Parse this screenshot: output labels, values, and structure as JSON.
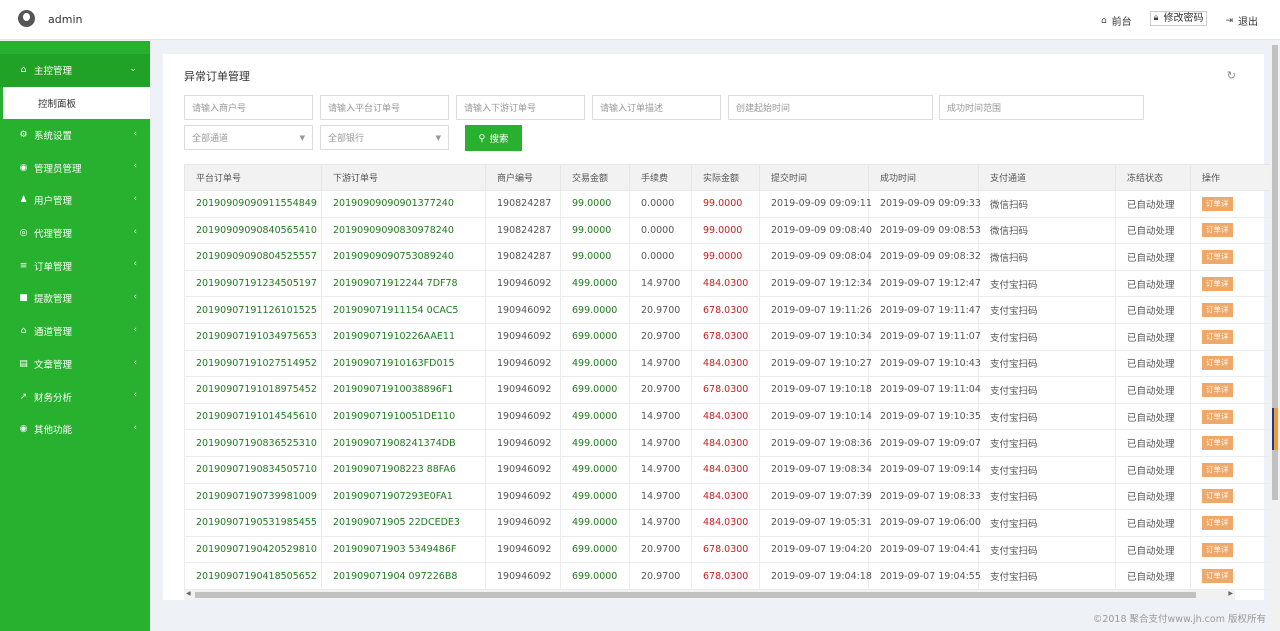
{
  "header": {
    "user_name": "admin",
    "links": [
      {
        "icon": "home-icon",
        "glyph": "⌂",
        "label": "前台"
      },
      {
        "icon": "lock-icon",
        "glyph": "🔒︎",
        "label": "修改密码"
      },
      {
        "icon": "logout-icon",
        "glyph": "⇥",
        "label": "退出"
      }
    ]
  },
  "sidebar": {
    "items": [
      {
        "icon": "home-icon",
        "glyph": "⌂",
        "label": "主控管理",
        "chevron": "⌄",
        "active": true
      },
      {
        "icon": "gears-icon",
        "glyph": "⚙",
        "label": "系统设置",
        "chevron": "‹"
      },
      {
        "icon": "user-circle-icon",
        "glyph": "◉",
        "label": "管理员管理",
        "chevron": "‹"
      },
      {
        "icon": "users-icon",
        "glyph": "♟",
        "label": "用户管理",
        "chevron": "‹"
      },
      {
        "icon": "eye-icon",
        "glyph": "◎",
        "label": "代理管理",
        "chevron": "‹"
      },
      {
        "icon": "list-icon",
        "glyph": "≡",
        "label": "订单管理",
        "chevron": "‹"
      },
      {
        "icon": "lock-icon",
        "glyph": "■",
        "label": "提款管理",
        "chevron": "‹"
      },
      {
        "icon": "bank-icon",
        "glyph": "⌂",
        "label": "通道管理",
        "chevron": "‹"
      },
      {
        "icon": "book-icon",
        "glyph": "▤",
        "label": "文章管理",
        "chevron": "‹"
      },
      {
        "icon": "chart-icon",
        "glyph": "↗",
        "label": "财务分析",
        "chevron": "‹"
      },
      {
        "icon": "user-circle-icon",
        "glyph": "◉",
        "label": "其他功能",
        "chevron": "‹"
      }
    ],
    "sub_item": "控制面板"
  },
  "panel": {
    "title": "异常订单管理",
    "filters": {
      "merchant_placeholder": "请输入商户号",
      "platform_order_placeholder": "请输入平台订单号",
      "downstream_order_placeholder": "请输入下游订单号",
      "order_desc_placeholder": "请输入订单描述",
      "created_range_placeholder": "创建起始时间",
      "success_range_placeholder": "成功时间范围",
      "channel_select": "全部通道",
      "bank_select": "全部银行",
      "search_label": "搜索"
    }
  },
  "table": {
    "columns": [
      "平台订单号",
      "下游订单号",
      "商户编号",
      "交易金额",
      "手续费",
      "实际金额",
      "提交时间",
      "成功时间",
      "支付通道",
      "冻结状态",
      "操作"
    ],
    "op_label": "订单详",
    "rows": [
      [
        "20190909090911554849",
        "20190909090901377240",
        "190824287",
        "99.0000",
        "0.0000",
        "99.0000",
        "2019-09-09 09:09:11",
        "2019-09-09 09:09:33",
        "微信扫码",
        "已自动处理"
      ],
      [
        "20190909090840565410",
        "20190909090830978240",
        "190824287",
        "99.0000",
        "0.0000",
        "99.0000",
        "2019-09-09 09:08:40",
        "2019-09-09 09:08:53",
        "微信扫码",
        "已自动处理"
      ],
      [
        "20190909090804525557",
        "20190909090753089240",
        "190824287",
        "99.0000",
        "0.0000",
        "99.0000",
        "2019-09-09 09:08:04",
        "2019-09-09 09:08:32",
        "微信扫码",
        "已自动处理"
      ],
      [
        "20190907191234505197",
        "201909071912244 7DF78",
        "190946092",
        "499.0000",
        "14.9700",
        "484.0300",
        "2019-09-07 19:12:34",
        "2019-09-07 19:12:47",
        "支付宝扫码",
        "已自动处理"
      ],
      [
        "20190907191126101525",
        "201909071911154 0CAC5",
        "190946092",
        "699.0000",
        "20.9700",
        "678.0300",
        "2019-09-07 19:11:26",
        "2019-09-07 19:11:47",
        "支付宝扫码",
        "已自动处理"
      ],
      [
        "20190907191034975653",
        "201909071910226AAE11",
        "190946092",
        "699.0000",
        "20.9700",
        "678.0300",
        "2019-09-07 19:10:34",
        "2019-09-07 19:11:07",
        "支付宝扫码",
        "已自动处理"
      ],
      [
        "20190907191027514952",
        "201909071910163FD015",
        "190946092",
        "499.0000",
        "14.9700",
        "484.0300",
        "2019-09-07 19:10:27",
        "2019-09-07 19:10:43",
        "支付宝扫码",
        "已自动处理"
      ],
      [
        "20190907191018975452",
        "201909071910038896F1",
        "190946092",
        "699.0000",
        "20.9700",
        "678.0300",
        "2019-09-07 19:10:18",
        "2019-09-07 19:11:04",
        "支付宝扫码",
        "已自动处理"
      ],
      [
        "20190907191014545610",
        "201909071910051DE110",
        "190946092",
        "499.0000",
        "14.9700",
        "484.0300",
        "2019-09-07 19:10:14",
        "2019-09-07 19:10:35",
        "支付宝扫码",
        "已自动处理"
      ],
      [
        "20190907190836525310",
        "201909071908241374DB",
        "190946092",
        "499.0000",
        "14.9700",
        "484.0300",
        "2019-09-07 19:08:36",
        "2019-09-07 19:09:07",
        "支付宝扫码",
        "已自动处理"
      ],
      [
        "20190907190834505710",
        "201909071908223 88FA6",
        "190946092",
        "499.0000",
        "14.9700",
        "484.0300",
        "2019-09-07 19:08:34",
        "2019-09-07 19:09:14",
        "支付宝扫码",
        "已自动处理"
      ],
      [
        "20190907190739981009",
        "201909071907293E0FA1",
        "190946092",
        "499.0000",
        "14.9700",
        "484.0300",
        "2019-09-07 19:07:39",
        "2019-09-07 19:08:33",
        "支付宝扫码",
        "已自动处理"
      ],
      [
        "20190907190531985455",
        "201909071905 22DCEDE3",
        "190946092",
        "499.0000",
        "14.9700",
        "484.0300",
        "2019-09-07 19:05:31",
        "2019-09-07 19:06:00",
        "支付宝扫码",
        "已自动处理"
      ],
      [
        "20190907190420529810",
        "201909071903 5349486F",
        "190946092",
        "699.0000",
        "20.9700",
        "678.0300",
        "2019-09-07 19:04:20",
        "2019-09-07 19:04:41",
        "支付宝扫码",
        "已自动处理"
      ],
      [
        "20190907190418505652",
        "201909071904 097226B8",
        "190946092",
        "699.0000",
        "20.9700",
        "678.0300",
        "2019-09-07 19:04:18",
        "2019-09-07 19:04:55",
        "支付宝扫码",
        "已自动处理"
      ]
    ]
  },
  "footer": {
    "copyright": "©2018 聚合支付www.jh.com 版权所有"
  },
  "colors": {
    "brand_green": "#28b02f",
    "amount_red": "#c81e1e",
    "order_green": "#1f7a1f",
    "op_orange": "#f0a868"
  }
}
